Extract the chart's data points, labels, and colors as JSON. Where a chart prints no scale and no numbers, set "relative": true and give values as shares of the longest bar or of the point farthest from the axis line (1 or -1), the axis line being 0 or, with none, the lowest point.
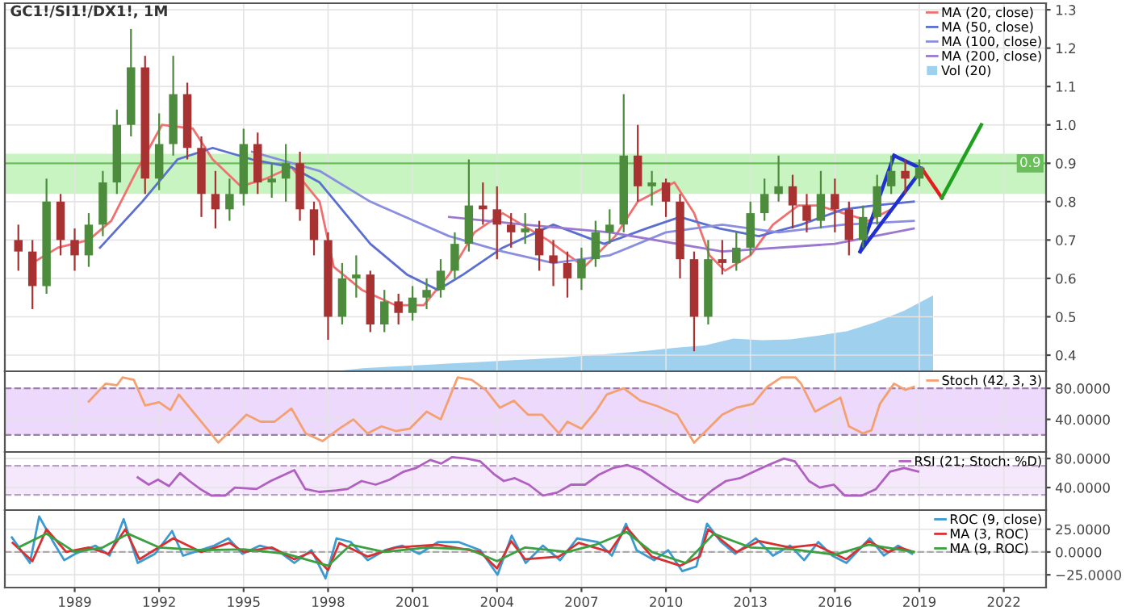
{
  "chart_data": [
    {
      "type": "candlestick",
      "title": "GC1!/SI1!/DX1!, 1M",
      "xlim": [
        1986.52,
        2023.5
      ],
      "ylim": [
        0.358,
        1.317
      ],
      "xticks": [
        1989,
        1992,
        1995,
        1998,
        2001,
        2004,
        2007,
        2010,
        2013,
        2016,
        2019,
        2022
      ],
      "yticks": [
        0.4,
        0.5,
        0.6,
        0.7,
        0.8,
        0.9,
        {
          "value": 1.0,
          "label": "1.0"
        },
        1.1,
        1.2,
        1.3
      ],
      "tick_labels": "y",
      "grid": true,
      "legend": "top right",
      "x": [
        1987.0,
        1987.5,
        1988.0,
        1988.5,
        1989.0,
        1989.5,
        1990.0,
        1990.5,
        1991.0,
        1991.5,
        1992.0,
        1992.5,
        1993.0,
        1993.5,
        1994.0,
        1994.5,
        1995.0,
        1995.5,
        1996.0,
        1996.5,
        1997.0,
        1997.5,
        1998.0,
        1998.5,
        1999.0,
        1999.5,
        2000.0,
        2000.5,
        2001.0,
        2001.5,
        2002.0,
        2002.5,
        2003.0,
        2003.5,
        2004.0,
        2004.5,
        2005.0,
        2005.5,
        2006.0,
        2006.5,
        2007.0,
        2007.5,
        2008.0,
        2008.5,
        2009.0,
        2009.5,
        2010.0,
        2010.5,
        2011.0,
        2011.5,
        2012.0,
        2012.5,
        2013.0,
        2013.5,
        2014.0,
        2014.5,
        2015.0,
        2015.5,
        2016.0,
        2016.5,
        2017.0,
        2017.5,
        2018.0,
        2018.5,
        2019.0
      ],
      "ohlc": [
        [
          0.7,
          0.74,
          0.62,
          0.67
        ],
        [
          0.67,
          0.7,
          0.52,
          0.58
        ],
        [
          0.58,
          0.86,
          0.56,
          0.8
        ],
        [
          0.8,
          0.82,
          0.66,
          0.7
        ],
        [
          0.7,
          0.73,
          0.62,
          0.66
        ],
        [
          0.66,
          0.77,
          0.63,
          0.74
        ],
        [
          0.74,
          0.88,
          0.71,
          0.85
        ],
        [
          0.85,
          1.04,
          0.82,
          1.0
        ],
        [
          1.0,
          1.25,
          0.97,
          1.15
        ],
        [
          1.15,
          1.18,
          0.82,
          0.86
        ],
        [
          0.86,
          1.03,
          0.83,
          0.95
        ],
        [
          0.95,
          1.18,
          0.92,
          1.08
        ],
        [
          1.08,
          1.11,
          0.91,
          0.94
        ],
        [
          0.94,
          0.97,
          0.76,
          0.82
        ],
        [
          0.82,
          0.88,
          0.73,
          0.78
        ],
        [
          0.78,
          0.86,
          0.75,
          0.82
        ],
        [
          0.82,
          0.99,
          0.79,
          0.95
        ],
        [
          0.95,
          0.98,
          0.82,
          0.85
        ],
        [
          0.85,
          0.9,
          0.81,
          0.86
        ],
        [
          0.86,
          0.95,
          0.8,
          0.9
        ],
        [
          0.9,
          0.93,
          0.75,
          0.78
        ],
        [
          0.78,
          0.8,
          0.66,
          0.7
        ],
        [
          0.7,
          0.72,
          0.44,
          0.5
        ],
        [
          0.5,
          0.64,
          0.48,
          0.6
        ],
        [
          0.6,
          0.66,
          0.55,
          0.61
        ],
        [
          0.61,
          0.62,
          0.46,
          0.48
        ],
        [
          0.48,
          0.57,
          0.46,
          0.54
        ],
        [
          0.54,
          0.56,
          0.48,
          0.51
        ],
        [
          0.51,
          0.58,
          0.49,
          0.55
        ],
        [
          0.55,
          0.6,
          0.52,
          0.57
        ],
        [
          0.57,
          0.65,
          0.55,
          0.62
        ],
        [
          0.62,
          0.72,
          0.6,
          0.69
        ],
        [
          0.69,
          0.91,
          0.67,
          0.79
        ],
        [
          0.79,
          0.85,
          0.74,
          0.78
        ],
        [
          0.78,
          0.84,
          0.65,
          0.74
        ],
        [
          0.74,
          0.77,
          0.68,
          0.72
        ],
        [
          0.72,
          0.77,
          0.69,
          0.73
        ],
        [
          0.73,
          0.75,
          0.62,
          0.66
        ],
        [
          0.66,
          0.7,
          0.58,
          0.64
        ],
        [
          0.64,
          0.67,
          0.55,
          0.6
        ],
        [
          0.6,
          0.68,
          0.57,
          0.65
        ],
        [
          0.65,
          0.75,
          0.63,
          0.72
        ],
        [
          0.72,
          0.78,
          0.69,
          0.74
        ],
        [
          0.74,
          1.08,
          0.72,
          0.92
        ],
        [
          0.92,
          1.0,
          0.8,
          0.84
        ],
        [
          0.84,
          0.88,
          0.79,
          0.85
        ],
        [
          0.85,
          0.86,
          0.76,
          0.8
        ],
        [
          0.8,
          0.82,
          0.6,
          0.65
        ],
        [
          0.65,
          0.67,
          0.41,
          0.5
        ],
        [
          0.5,
          0.7,
          0.48,
          0.65
        ],
        [
          0.65,
          0.7,
          0.61,
          0.64
        ],
        [
          0.64,
          0.72,
          0.62,
          0.68
        ],
        [
          0.68,
          0.8,
          0.66,
          0.77
        ],
        [
          0.77,
          0.86,
          0.75,
          0.82
        ],
        [
          0.82,
          0.92,
          0.8,
          0.84
        ],
        [
          0.84,
          0.87,
          0.73,
          0.79
        ],
        [
          0.79,
          0.82,
          0.72,
          0.75
        ],
        [
          0.75,
          0.88,
          0.73,
          0.82
        ],
        [
          0.82,
          0.86,
          0.72,
          0.78
        ],
        [
          0.78,
          0.8,
          0.66,
          0.7
        ],
        [
          0.7,
          0.79,
          0.68,
          0.76
        ],
        [
          0.76,
          0.87,
          0.74,
          0.84
        ],
        [
          0.84,
          0.92,
          0.82,
          0.88
        ],
        [
          0.88,
          0.91,
          0.82,
          0.86
        ],
        [
          0.86,
          0.91,
          0.84,
          0.89
        ]
      ],
      "colors": [
        "#a83232",
        "#a83232",
        "#4c8c3c",
        "#a83232",
        "#a83232",
        "#4c8c3c",
        "#4c8c3c",
        "#4c8c3c",
        "#4c8c3c",
        "#a83232",
        "#4c8c3c",
        "#4c8c3c",
        "#a83232",
        "#a83232",
        "#a83232",
        "#4c8c3c",
        "#4c8c3c",
        "#a83232",
        "#4c8c3c",
        "#4c8c3c",
        "#a83232",
        "#a83232",
        "#a83232",
        "#4c8c3c",
        "#4c8c3c",
        "#a83232",
        "#4c8c3c",
        "#a83232",
        "#4c8c3c",
        "#4c8c3c",
        "#4c8c3c",
        "#4c8c3c",
        "#4c8c3c",
        "#a83232",
        "#a83232",
        "#a83232",
        "#4c8c3c",
        "#a83232",
        "#a83232",
        "#a83232",
        "#4c8c3c",
        "#4c8c3c",
        "#4c8c3c",
        "#4c8c3c",
        "#a83232",
        "#4c8c3c",
        "#a83232",
        "#a83232",
        "#a83232",
        "#4c8c3c",
        "#a83232",
        "#4c8c3c",
        "#4c8c3c",
        "#4c8c3c",
        "#4c8c3c",
        "#a83232",
        "#a83232",
        "#4c8c3c",
        "#a83232",
        "#a83232",
        "#4c8c3c",
        "#4c8c3c",
        "#4c8c3c",
        "#a83232",
        "#4c8c3c"
      ],
      "series": [
        {
          "type": "line",
          "name": "MA (20, close)",
          "color": "#f07070",
          "x": [
            1987.5,
            1988.4,
            1989.5,
            1990.3,
            1991.2,
            1992.1,
            1993.2,
            1993.9,
            1994.9,
            1995.8,
            1996.7,
            1997.7,
            1998.2,
            1999.2,
            2000.4,
            2001.4,
            2002.3,
            2003.2,
            2004.2,
            2005.8,
            2007.1,
            2008.2,
            2009.0,
            2010.3,
            2011.0,
            2011.55,
            2012.1,
            2013.0,
            2013.8,
            2014.7,
            2015.4,
            2016.3,
            2017.2,
            2018.0
          ],
          "values": [
            0.64,
            0.68,
            0.7,
            0.75,
            0.88,
            1.0,
            0.99,
            0.91,
            0.84,
            0.86,
            0.89,
            0.8,
            0.63,
            0.57,
            0.53,
            0.53,
            0.61,
            0.72,
            0.77,
            0.7,
            0.63,
            0.71,
            0.8,
            0.85,
            0.77,
            0.66,
            0.62,
            0.66,
            0.74,
            0.79,
            0.79,
            0.77,
            0.75,
            0.78
          ]
        },
        {
          "type": "line",
          "name": "MA (50, close)",
          "color": "#5a6fd0",
          "x": [
            1989.9,
            1991.4,
            1992.65,
            1993.9,
            1995.3,
            1996.7,
            1997.7,
            1998.6,
            1999.5,
            2000.8,
            2001.9,
            2002.8,
            2004.2,
            2006.0,
            2007.8,
            2009.3,
            2010.5,
            2011.9,
            2013.3,
            2014.8,
            2016.3,
            2017.4,
            2018.8
          ],
          "values": [
            0.68,
            0.8,
            0.91,
            0.94,
            0.91,
            0.89,
            0.85,
            0.77,
            0.69,
            0.61,
            0.57,
            0.61,
            0.68,
            0.74,
            0.69,
            0.73,
            0.76,
            0.73,
            0.71,
            0.74,
            0.78,
            0.79,
            0.8
          ]
        },
        {
          "type": "line",
          "name": "MA (100, close)",
          "color": "#8a8ee0",
          "x": [
            1995.3,
            1997.7,
            1999.5,
            2002.3,
            2004.2,
            2006.0,
            2008.0,
            2010.0,
            2012.0,
            2014.0,
            2016.3,
            2018.8
          ],
          "values": [
            0.93,
            0.88,
            0.8,
            0.71,
            0.67,
            0.64,
            0.66,
            0.72,
            0.74,
            0.72,
            0.74,
            0.75
          ]
        },
        {
          "type": "line",
          "name": "MA (200, close)",
          "color": "#9a78d0",
          "x": [
            2002.3,
            2005.0,
            2008.0,
            2012.0,
            2016.0,
            2018.8
          ],
          "values": [
            0.76,
            0.74,
            0.72,
            0.67,
            0.69,
            0.73
          ]
        },
        {
          "type": "line",
          "color": "#2030d0",
          "x": [
            2016.9,
            2018.1
          ],
          "values": [
            0.67,
            0.92
          ]
        },
        {
          "type": "line",
          "color": "#2030d0",
          "x": [
            2018.1,
            2019.1
          ],
          "values": [
            0.92,
            0.885
          ]
        },
        {
          "type": "line",
          "color": "#2030d0",
          "x": [
            2016.9,
            2019.1
          ],
          "values": [
            0.67,
            0.885
          ]
        },
        {
          "type": "line",
          "color": "#e02020",
          "x": [
            2019.1,
            2019.8
          ],
          "values": [
            0.885,
            0.81
          ]
        },
        {
          "type": "line",
          "color": "#20a020",
          "x": [
            2019.8,
            2021.2
          ],
          "values": [
            0.81,
            1.0
          ]
        }
      ],
      "bands": [
        {
          "axis": "y",
          "from": 0.82,
          "to": 0.925,
          "color": "#b4f0ac"
        }
      ],
      "ref_lines": [
        {
          "axis": "y",
          "value": 0.9,
          "label": "0.9",
          "color": "#6abf5a"
        }
      ]
    },
    {
      "type": "area",
      "relative": true,
      "tick_labels": false,
      "legend": "top right",
      "categories": [
        null,
        null,
        null,
        null,
        null,
        null,
        null,
        null,
        null,
        null,
        null,
        null,
        null,
        null,
        null,
        null,
        null,
        null,
        null,
        null,
        null,
        null
      ],
      "series": [
        {
          "type": "area",
          "name": "Vol (20)",
          "color": "#9fd0ee",
          "values": [
            0,
            0.04,
            0.06,
            0.08,
            0.1,
            0.12,
            0.14,
            0.16,
            0.18,
            0.21,
            0.24,
            0.27,
            0.31,
            0.34,
            0.43,
            0.41,
            0.42,
            0.47,
            0.53,
            0.65,
            0.8,
            1.0
          ]
        }
      ]
    },
    {
      "type": "line",
      "xlim": [
        1986.52,
        2023.5
      ],
      "ylim": [
        -2,
        102
      ],
      "xticks": [
        1989,
        1992,
        1995,
        1998,
        2001,
        2004,
        2007,
        2010,
        2013,
        2016,
        2019,
        2022
      ],
      "yticks": [
        {
          "value": 80,
          "label": "80.0000"
        },
        {
          "value": 40,
          "label": "40.0000"
        }
      ],
      "tick_labels": "y",
      "grid": true,
      "legend": "top right",
      "series": [
        {
          "type": "line",
          "name": "Stoch (42, 3, 3)",
          "color": "#f4a070",
          "x": [
            1989.5,
            1990.1,
            1990.5,
            1990.7,
            1991.1,
            1991.5,
            1992.0,
            1992.4,
            1992.7,
            1993.2,
            1993.7,
            1994.1,
            1994.6,
            1995.1,
            1995.6,
            1996.1,
            1996.7,
            1997.2,
            1997.8,
            1998.4,
            1998.9,
            1999.4,
            1999.9,
            2000.4,
            2000.9,
            2001.5,
            2002.0,
            2002.6,
            2003.1,
            2003.6,
            2004.1,
            2004.6,
            2005.1,
            2005.6,
            2006.2,
            2006.5,
            2007.0,
            2007.5,
            2007.9,
            2008.5,
            2009.1,
            2009.7,
            2010.4,
            2011.0,
            2011.5,
            2012.0,
            2012.5,
            2013.1,
            2013.6,
            2014.1,
            2014.6,
            2014.8,
            2015.3,
            2015.8,
            2016.2,
            2016.5,
            2017.0,
            2017.3,
            2017.6,
            2018.1,
            2018.5,
            2018.8
          ],
          "values": [
            63,
            86,
            84,
            94,
            91,
            58,
            62,
            52,
            72,
            50,
            28,
            10,
            28,
            46,
            37,
            37,
            54,
            22,
            12,
            28,
            40,
            22,
            31,
            25,
            28,
            50,
            40,
            94,
            91,
            78,
            55,
            64,
            46,
            46,
            22,
            37,
            28,
            50,
            72,
            80,
            64,
            57,
            46,
            10,
            28,
            46,
            55,
            60,
            82,
            94,
            94,
            86,
            50,
            60,
            68,
            31,
            22,
            26,
            60,
            86,
            78,
            82
          ]
        }
      ],
      "bands": [
        {
          "axis": "y",
          "from": 20,
          "to": 80,
          "color": "#e6ccfa"
        }
      ],
      "ref_lines": [
        {
          "axis": "y",
          "value": 80,
          "color": "#9a80a8",
          "line_style": "dashed"
        },
        {
          "axis": "y",
          "value": 20,
          "color": "#9a80a8",
          "line_style": "dashed"
        }
      ]
    },
    {
      "type": "line",
      "xlim": [
        1986.52,
        2023.5
      ],
      "ylim": [
        9,
        89
      ],
      "xticks": [
        1989,
        1992,
        1995,
        1998,
        2001,
        2004,
        2007,
        2010,
        2013,
        2016,
        2019,
        2022
      ],
      "yticks": [
        {
          "value": 80,
          "label": "80.0000"
        },
        {
          "value": 40,
          "label": "40.0000"
        }
      ],
      "tick_labels": "y",
      "grid": true,
      "legend": "top right",
      "series": [
        {
          "type": "line",
          "name": "RSI (21; Stoch: %D)",
          "color": "#b060c0",
          "x": [
            1991.24,
            1991.63,
            1991.96,
            1992.35,
            1992.74,
            1993.08,
            1993.46,
            1993.85,
            1994.35,
            1994.69,
            1995.46,
            1995.96,
            1996.46,
            1996.8,
            1997.19,
            1997.69,
            1998.3,
            1998.69,
            1999.19,
            1999.69,
            2000.19,
            2000.69,
            2001.13,
            2001.63,
            2002.02,
            2002.41,
            2002.91,
            2003.41,
            2003.91,
            2004.24,
            2004.63,
            2005.13,
            2005.63,
            2006.13,
            2006.63,
            2007.13,
            2007.63,
            2008.13,
            2008.63,
            2009.13,
            2009.63,
            2010.13,
            2010.74,
            2011.13,
            2011.63,
            2012.13,
            2012.63,
            2013.13,
            2013.63,
            2014.19,
            2014.58,
            2015.08,
            2015.46,
            2015.96,
            2016.35,
            2016.96,
            2017.46,
            2017.96,
            2018.46,
            2018.96
          ],
          "values": [
            54,
            44,
            51,
            42,
            60,
            49,
            38,
            29,
            29,
            40,
            38,
            49,
            58,
            64,
            38,
            34,
            36,
            38,
            49,
            44,
            51,
            62,
            67,
            78,
            73,
            82,
            80,
            76,
            58,
            49,
            53,
            44,
            29,
            33,
            44,
            44,
            58,
            67,
            71,
            64,
            51,
            38,
            24,
            20,
            36,
            49,
            53,
            62,
            71,
            80,
            76,
            49,
            40,
            44,
            29,
            29,
            38,
            62,
            67,
            62
          ]
        }
      ],
      "bands": [
        {
          "axis": "y",
          "from": 30,
          "to": 70,
          "color": "#f3e0fb"
        }
      ],
      "ref_lines": [
        {
          "axis": "y",
          "value": 70,
          "color": "#b8a0c0",
          "line_style": "dashed"
        },
        {
          "axis": "y",
          "value": 30,
          "color": "#b8a0c0",
          "line_style": "dashed"
        }
      ]
    },
    {
      "type": "line",
      "xlim": [
        1986.52,
        2023.5
      ],
      "ylim": [
        -39,
        46
      ],
      "xticks": [
        1989,
        1992,
        1995,
        1998,
        2001,
        2004,
        2007,
        2010,
        2013,
        2016,
        2019,
        2022
      ],
      "yticks": [
        {
          "value": 25,
          "label": "25.0000"
        },
        {
          "value": 0,
          "label": "0.0000"
        },
        {
          "value": -25,
          "label": "−25.0000"
        }
      ],
      "grid": true,
      "legend": "top right",
      "series": [
        {
          "type": "line",
          "name": "ROC (9, close)",
          "color": "#3c9ad0",
          "x": [
            1986.77,
            1987.41,
            1987.74,
            1988.24,
            1988.63,
            1989.02,
            1989.74,
            1990.24,
            1990.74,
            1991.24,
            1991.85,
            1992.46,
            1992.85,
            1993.46,
            1993.96,
            1994.46,
            1994.96,
            1995.58,
            1996.19,
            1996.8,
            1997.41,
            1997.91,
            1998.3,
            1998.8,
            1999.41,
            2000.02,
            2000.63,
            2001.24,
            2001.91,
            2002.63,
            2003.41,
            2004.02,
            2004.52,
            2005.02,
            2005.63,
            2006.24,
            2006.85,
            2007.58,
            2008.08,
            2008.58,
            2008.96,
            2009.58,
            2010.08,
            2010.58,
            2011.08,
            2011.46,
            2011.96,
            2012.46,
            2013.19,
            2013.8,
            2014.41,
            2014.91,
            2015.41,
            2015.91,
            2016.41,
            2017.24,
            2017.74,
            2018.24,
            2018.74
          ],
          "values": [
            16,
            -12,
            39,
            11,
            -9,
            -2,
            7,
            -4,
            36,
            -12,
            -2,
            23,
            -4,
            2,
            7,
            15,
            -2,
            7,
            2,
            -12,
            2,
            -29,
            15,
            11,
            -9,
            2,
            7,
            -2,
            11,
            11,
            2,
            -25,
            18,
            -12,
            7,
            -9,
            15,
            11,
            -4,
            31,
            2,
            -9,
            2,
            -21,
            -16,
            31,
            11,
            -2,
            15,
            -4,
            7,
            -9,
            11,
            -4,
            -12,
            15,
            -4,
            7,
            -2
          ]
        },
        {
          "type": "line",
          "name": "MA (3, ROC)",
          "color": "#d83030",
          "x": [
            1986.8,
            1987.5,
            1988.0,
            1988.7,
            1989.5,
            1990.2,
            1990.8,
            1991.3,
            1992.5,
            1993.5,
            1994.5,
            1995.0,
            1996.0,
            1996.8,
            1997.4,
            1998.0,
            1998.4,
            1999.4,
            2000.4,
            2001.9,
            2003.4,
            2004.0,
            2004.5,
            2005.0,
            2006.2,
            2006.9,
            2008.0,
            2008.6,
            2009.5,
            2010.5,
            2011.2,
            2011.5,
            2012.5,
            2013.3,
            2014.4,
            2015.3,
            2016.4,
            2017.2,
            2017.9,
            2018.3,
            2018.8
          ],
          "values": [
            10,
            -10,
            25,
            0,
            5,
            -2,
            25,
            -8,
            15,
            0,
            10,
            0,
            5,
            -8,
            0,
            -20,
            10,
            -5,
            5,
            8,
            0,
            -18,
            12,
            -8,
            -5,
            10,
            0,
            27,
            -5,
            -15,
            -5,
            25,
            0,
            12,
            5,
            8,
            -8,
            12,
            0,
            5,
            0
          ]
        },
        {
          "type": "line",
          "name": "MA (9, ROC)",
          "color": "#3aa040",
          "x": [
            1987.0,
            1988.0,
            1989.0,
            1990.0,
            1990.9,
            1992.0,
            1993.5,
            1995.0,
            1996.5,
            1998.0,
            1998.8,
            2000.0,
            2001.5,
            2003.0,
            2004.0,
            2005.0,
            2006.5,
            2007.5,
            2008.6,
            2009.5,
            2010.7,
            2011.7,
            2013.0,
            2014.5,
            2016.0,
            2017.2,
            2018.8
          ],
          "values": [
            5,
            20,
            0,
            5,
            20,
            5,
            2,
            3,
            -2,
            -15,
            8,
            0,
            5,
            3,
            -10,
            5,
            0,
            8,
            22,
            0,
            -12,
            20,
            5,
            3,
            -3,
            8,
            0
          ]
        }
      ],
      "ref_lines": [
        {
          "axis": "y",
          "value": 0,
          "color": "#aaaaaa",
          "line_style": "dashed"
        }
      ]
    }
  ]
}
